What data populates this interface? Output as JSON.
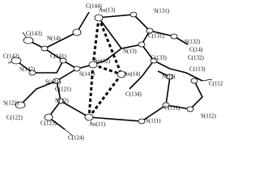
{
  "atoms": [
    "C(144)",
    "C(143)",
    "N(14)",
    "C(142)",
    "C(141)",
    "S(142)",
    "Au(13)",
    "S(131)",
    "C(131)",
    "S(132)",
    "C(14)",
    "C(132)",
    "N(13)",
    "C(133)",
    "Au(12)",
    "Au(14)",
    "S(141)",
    "S(121)",
    "C(121)",
    "N(11)",
    "C(113)",
    "C(112",
    "C(134)",
    "S(122)",
    "N(12)",
    "C(122)",
    "C(123)",
    "C(124)",
    "Au(11)",
    "S(111)",
    "C(111)",
    "S(112)"
  ]
}
